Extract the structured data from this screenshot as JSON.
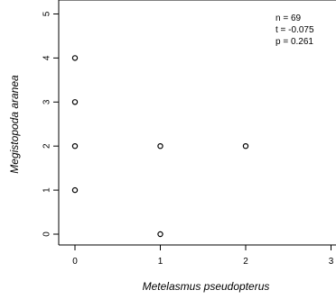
{
  "chart_data": {
    "type": "scatter",
    "xlabel": "Metelasmus pseudopterus",
    "ylabel": "Megistopoda aranea",
    "xlim": [
      0,
      3
    ],
    "ylim": [
      0,
      5
    ],
    "x_ticks": [
      "0",
      "1",
      "2",
      "3"
    ],
    "y_ticks": [
      "0",
      "1",
      "2",
      "3",
      "4",
      "5"
    ],
    "points": [
      {
        "x": 0,
        "y": 4
      },
      {
        "x": 0,
        "y": 3
      },
      {
        "x": 0,
        "y": 2
      },
      {
        "x": 0,
        "y": 1
      },
      {
        "x": 1,
        "y": 2
      },
      {
        "x": 1,
        "y": 0
      },
      {
        "x": 2,
        "y": 2
      }
    ],
    "annotations": [
      "n = 69",
      "t = -0.075",
      "p = 0.261"
    ],
    "grid": false,
    "marker": "open-circle"
  }
}
